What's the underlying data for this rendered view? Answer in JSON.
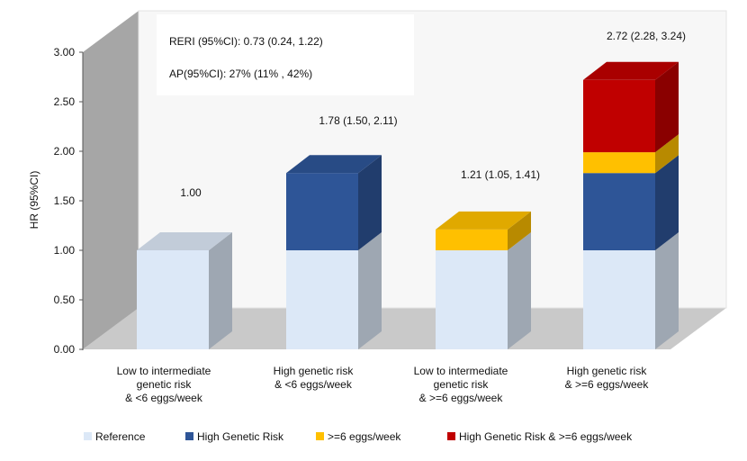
{
  "chart_data": {
    "type": "bar",
    "stacked": true,
    "three_d": true,
    "title": "",
    "ylabel": "HR (95%CI)",
    "xlabel": "",
    "ylim": [
      0,
      3.0
    ],
    "yticks": [
      "0.00",
      "0.50",
      "1.00",
      "1.50",
      "2.00",
      "2.50",
      "3.00"
    ],
    "ytick_values": [
      0,
      0.5,
      1.0,
      1.5,
      2.0,
      2.5,
      3.0
    ],
    "categories": [
      [
        "Low to intermediate",
        "genetic risk",
        "& <6 eggs/week"
      ],
      [
        "High genetic risk",
        "& <6 eggs/week"
      ],
      [
        "Low to intermediate",
        "genetic risk",
        "& >=6 eggs/week"
      ],
      [
        "High genetic risk",
        "& >=6 eggs/week"
      ]
    ],
    "series": [
      {
        "name": "Reference",
        "color": "#dce8f7",
        "values": [
          1.0,
          1.0,
          1.0,
          1.0
        ]
      },
      {
        "name": "High Genetic Risk",
        "color": "#2e5597",
        "values": [
          0,
          0.78,
          0,
          0.78
        ]
      },
      {
        "name": ">=6 eggs/week",
        "color": "#ffc000",
        "values": [
          0,
          0,
          0.21,
          0.21
        ]
      },
      {
        "name": "High Genetic Risk & >=6 eggs/week",
        "color": "#c00000",
        "values": [
          0,
          0,
          0,
          0.73
        ]
      }
    ],
    "totals": [
      1.0,
      1.78,
      1.21,
      2.72
    ],
    "data_labels": [
      "1.00",
      "1.78 (1.50, 2.11)",
      "1.21 (1.05, 1.41)",
      "2.72 (2.28, 3.24)"
    ],
    "annotations": [
      {
        "label": "RERI (95%CI):",
        "value": "0.73 (0.24, 1.22)"
      },
      {
        "label": "AP(95%CI):",
        "value": "27% (11% , 42%)"
      }
    ],
    "legend_position": "bottom",
    "grid": false
  }
}
